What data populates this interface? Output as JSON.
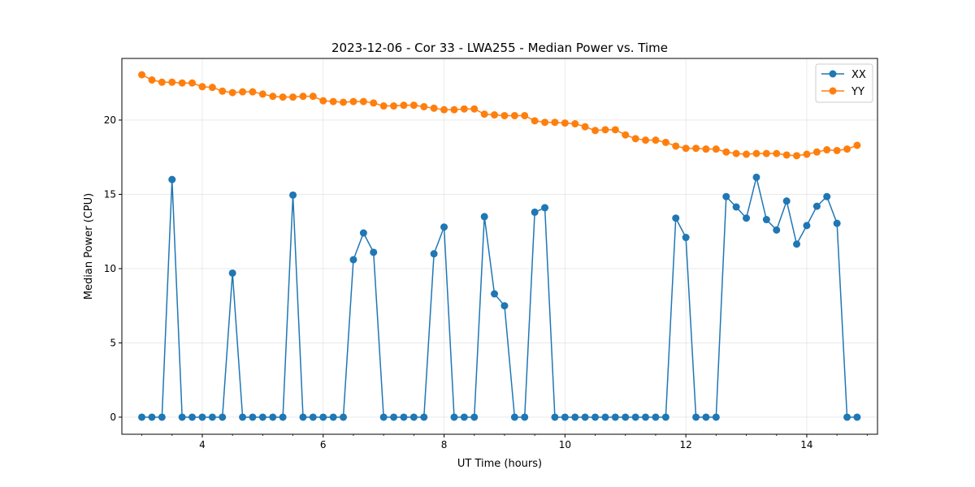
{
  "chart_data": {
    "type": "line",
    "title": "2023-12-06 - Cor 33 - LWA255 - Median Power vs. Time",
    "xlabel": "UT Time (hours)",
    "ylabel": "Median Power (CPU)",
    "xlim": [
      2.67,
      15.17
    ],
    "ylim": [
      -1.15,
      24.15
    ],
    "xticks": [
      4,
      6,
      8,
      10,
      12,
      14
    ],
    "yticks": [
      0,
      5,
      10,
      15,
      20
    ],
    "grid": true,
    "legend_position": "top-right",
    "x": [
      3.0,
      3.167,
      3.333,
      3.5,
      3.667,
      3.833,
      4.0,
      4.167,
      4.333,
      4.5,
      4.667,
      4.833,
      5.0,
      5.167,
      5.333,
      5.5,
      5.667,
      5.833,
      6.0,
      6.167,
      6.333,
      6.5,
      6.667,
      6.833,
      7.0,
      7.167,
      7.333,
      7.5,
      7.667,
      7.833,
      8.0,
      8.167,
      8.333,
      8.5,
      8.667,
      8.833,
      9.0,
      9.167,
      9.333,
      9.5,
      9.667,
      9.833,
      10.0,
      10.167,
      10.333,
      10.5,
      10.667,
      10.833,
      11.0,
      11.167,
      11.333,
      11.5,
      11.667,
      11.833,
      12.0,
      12.167,
      12.333,
      12.5,
      12.667,
      12.833,
      13.0,
      13.167,
      13.333,
      13.5,
      13.667,
      13.833,
      14.0,
      14.167,
      14.333,
      14.5,
      14.667,
      14.833
    ],
    "series": [
      {
        "name": "XX",
        "color": "#1f77b4",
        "values": [
          0,
          0,
          0,
          16.0,
          0,
          0,
          0,
          0,
          0,
          9.7,
          0,
          0,
          0,
          0,
          0,
          14.95,
          0,
          0,
          0,
          0,
          0,
          10.6,
          12.4,
          11.1,
          0,
          0,
          0,
          0,
          0,
          11.0,
          12.8,
          0,
          0,
          0,
          13.5,
          8.3,
          7.5,
          0,
          0,
          13.8,
          14.1,
          0,
          0,
          0,
          0,
          0,
          0,
          0,
          0,
          0,
          0,
          0,
          0,
          13.4,
          12.1,
          0,
          0,
          0,
          14.85,
          14.15,
          13.4,
          16.15,
          13.3,
          12.6,
          14.55,
          11.65,
          12.9,
          14.2,
          14.85,
          13.05,
          0,
          0
        ]
      },
      {
        "name": "YY",
        "color": "#ff7f0e",
        "values": [
          23.05,
          22.7,
          22.55,
          22.55,
          22.5,
          22.5,
          22.25,
          22.2,
          21.95,
          21.85,
          21.9,
          21.9,
          21.75,
          21.6,
          21.55,
          21.55,
          21.6,
          21.6,
          21.3,
          21.25,
          21.2,
          21.25,
          21.25,
          21.15,
          20.95,
          20.95,
          21.0,
          21.0,
          20.9,
          20.8,
          20.7,
          20.7,
          20.75,
          20.75,
          20.4,
          20.35,
          20.3,
          20.3,
          20.3,
          19.95,
          19.85,
          19.85,
          19.8,
          19.75,
          19.55,
          19.3,
          19.35,
          19.35,
          19.0,
          18.75,
          18.65,
          18.65,
          18.5,
          18.25,
          18.1,
          18.1,
          18.05,
          18.05,
          17.85,
          17.75,
          17.7,
          17.75,
          17.75,
          17.75,
          17.65,
          17.6,
          17.7,
          17.85,
          18.0,
          17.95,
          18.05,
          18.3
        ]
      }
    ]
  }
}
